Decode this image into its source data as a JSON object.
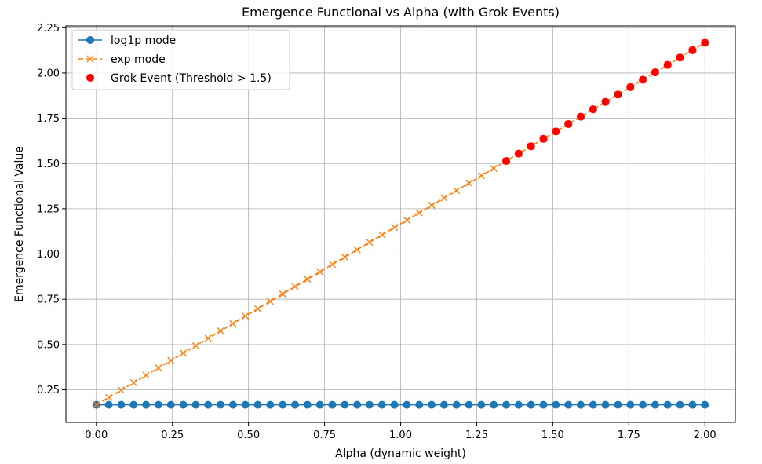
{
  "chart_data": {
    "type": "line",
    "title": "Emergence Functional vs Alpha (with Grok Events)",
    "xlabel": "Alpha (dynamic weight)",
    "ylabel": "Emergence Functional Value",
    "xlim": [
      -0.1,
      2.1
    ],
    "ylim": [
      0.07,
      2.26
    ],
    "xticks": [
      "0.00",
      "0.25",
      "0.50",
      "0.75",
      "1.00",
      "1.25",
      "1.50",
      "1.75",
      "2.00"
    ],
    "yticks": [
      "0.25",
      "0.50",
      "0.75",
      "1.00",
      "1.25",
      "1.50",
      "1.75",
      "2.00",
      "2.25"
    ],
    "grid": true,
    "legend_position": "upper-left",
    "x_start": 0.0,
    "x_end": 2.0,
    "num_points": 50,
    "series": [
      {
        "name": "log1p mode",
        "color": "#1f77b4",
        "marker": "circle",
        "linestyle": "solid",
        "y_start": 0.167,
        "y_end": 0.167
      },
      {
        "name": "exp mode",
        "color": "#ff7f0e",
        "marker": "x",
        "linestyle": "dashed",
        "y_start": 0.167,
        "y_end": 2.167
      }
    ],
    "events": {
      "name": "Grok Event (Threshold > 1.5)",
      "color": "#ff0000",
      "marker": "circle",
      "threshold": 1.5,
      "source_series": "exp mode"
    }
  }
}
